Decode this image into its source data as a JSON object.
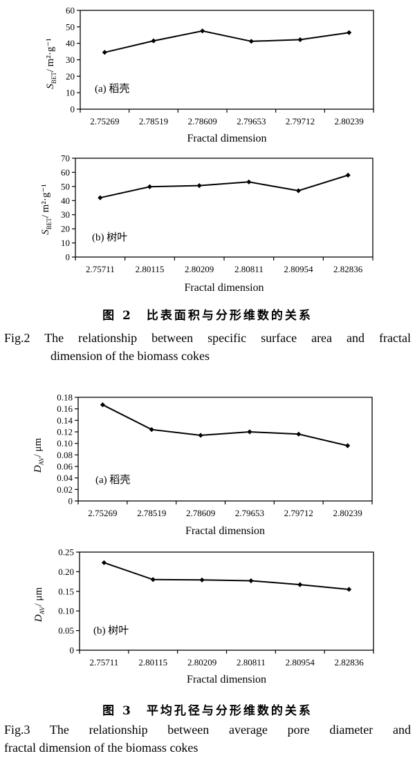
{
  "figure2": {
    "caption_cn": "图 2　比表面积与分形维数的关系",
    "caption_en_line1": "Fig.2  The relationship between specific surface area and fractal",
    "caption_en_line2": "dimension of the biomass cokes"
  },
  "figure3": {
    "caption_cn": "图 3　平均孔径与分形维数的关系",
    "caption_en_line1": "Fig.3  The relationship between average pore diameter and",
    "caption_en_line2": "fractal dimension of the biomass cokes"
  },
  "chart_data": [
    {
      "id": "fig2a",
      "type": "line",
      "panel_label": "(a) 稻壳",
      "xlabel": "Fractal dimension",
      "ylabel": {
        "sym": "S",
        "sub": "BET",
        "unit": "/ m²·g⁻¹"
      },
      "categories": [
        "2.75269",
        "2.78519",
        "2.78609",
        "2.79653",
        "2.79712",
        "2.80239"
      ],
      "values": [
        34.5,
        41.5,
        47.5,
        41.2,
        42.2,
        46.5
      ],
      "ylim": [
        0,
        60
      ],
      "yticks": [
        "0",
        "10",
        "20",
        "30",
        "40",
        "50",
        "60"
      ],
      "grid": false,
      "marker": "diamond",
      "color": "#000000"
    },
    {
      "id": "fig2b",
      "type": "line",
      "panel_label": "(b) 树叶",
      "xlabel": "Fractal dimension",
      "ylabel": {
        "sym": "S",
        "sub": "BET",
        "unit": "/ m²·g⁻¹"
      },
      "categories": [
        "2.75711",
        "2.80115",
        "2.80209",
        "2.80811",
        "2.80954",
        "2.82836"
      ],
      "values": [
        42.0,
        49.8,
        50.6,
        53.2,
        47.0,
        58.0
      ],
      "ylim": [
        0,
        70
      ],
      "yticks": [
        "0",
        "10",
        "20",
        "30",
        "40",
        "50",
        "60",
        "70"
      ],
      "grid": false,
      "marker": "diamond",
      "color": "#000000"
    },
    {
      "id": "fig3a",
      "type": "line",
      "panel_label": "(a) 稻壳",
      "xlabel": "Fractal dimension",
      "ylabel": {
        "sym": "D",
        "sub": "AV",
        "unit": "/ μm"
      },
      "categories": [
        "2.75269",
        "2.78519",
        "2.78609",
        "2.79653",
        "2.79712",
        "2.80239"
      ],
      "values": [
        0.167,
        0.124,
        0.114,
        0.12,
        0.116,
        0.096
      ],
      "ylim": [
        0,
        0.18
      ],
      "yticks": [
        "0",
        "0.02",
        "0.04",
        "0.06",
        "0.08",
        "0.10",
        "0.12",
        "0.14",
        "0.16",
        "0.18"
      ],
      "grid": false,
      "marker": "diamond",
      "color": "#000000"
    },
    {
      "id": "fig3b",
      "type": "line",
      "panel_label": "(b) 树叶",
      "xlabel": "Fractal dimension",
      "ylabel": {
        "sym": "D",
        "sub": "AV",
        "unit": "/ μm"
      },
      "categories": [
        "2.75711",
        "2.80115",
        "2.80209",
        "2.80811",
        "2.80954",
        "2.82836"
      ],
      "values": [
        0.223,
        0.18,
        0.179,
        0.177,
        0.167,
        0.155
      ],
      "ylim": [
        0,
        0.25
      ],
      "yticks": [
        "0",
        "0.05",
        "0.10",
        "0.15",
        "0.20",
        "0.25"
      ],
      "grid": false,
      "marker": "diamond",
      "color": "#000000"
    }
  ]
}
